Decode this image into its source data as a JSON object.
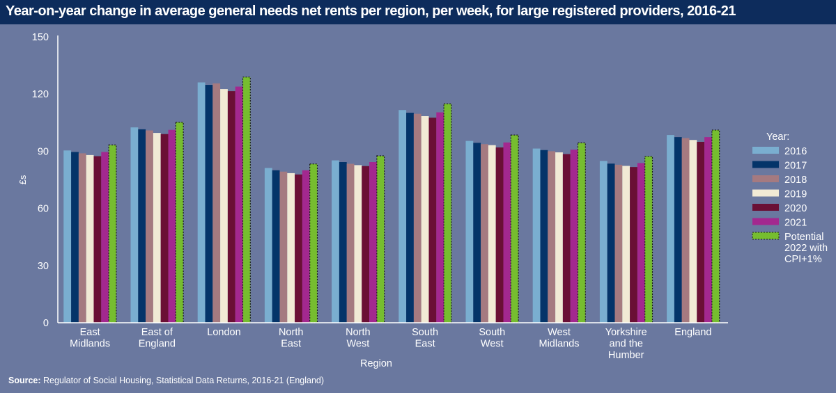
{
  "chart_data": {
    "type": "bar",
    "title": "Year-on-year change in average general needs net rents per region, per week, for large registered providers, 2016-21",
    "xlabel": "Region",
    "ylabel": "£s",
    "ylim": [
      0,
      150
    ],
    "yticks": [
      0,
      30,
      60,
      90,
      120,
      150
    ],
    "grid": false,
    "legend_title": "Year:",
    "legend_position": "right",
    "categories": [
      [
        "East",
        "Midlands"
      ],
      [
        "East  of",
        "England"
      ],
      [
        "London"
      ],
      [
        "North",
        "East"
      ],
      [
        "North",
        "West"
      ],
      [
        "South",
        "East"
      ],
      [
        "South",
        "West"
      ],
      [
        "West",
        "Midlands"
      ],
      [
        "Yorkshire",
        "and the",
        "Humber"
      ],
      [
        "England"
      ]
    ],
    "series": [
      {
        "name": "2016",
        "color": "#7aaed0",
        "values": [
          90.4,
          102.5,
          126.1,
          81.2,
          85.2,
          111.6,
          95.4,
          91.4,
          84.9,
          98.5
        ]
      },
      {
        "name": "2017",
        "color": "#043469",
        "values": [
          89.6,
          101.5,
          124.8,
          80.0,
          84.3,
          110.2,
          94.4,
          90.6,
          83.5,
          97.4
        ]
      },
      {
        "name": "2018",
        "color": "#a57a80",
        "values": [
          88.9,
          100.9,
          125.6,
          79.3,
          83.4,
          109.6,
          93.7,
          90.0,
          82.9,
          96.9
        ]
      },
      {
        "name": "2019",
        "color": "#f1ead5",
        "values": [
          88.0,
          99.6,
          122.6,
          78.5,
          82.7,
          108.4,
          93.2,
          89.4,
          82.3,
          95.9
        ]
      },
      {
        "name": "2020",
        "color": "#6a0f35",
        "values": [
          87.4,
          99.0,
          121.5,
          77.8,
          82.2,
          107.6,
          92.0,
          88.5,
          81.7,
          94.9
        ]
      },
      {
        "name": "2021",
        "color": "#a3288f",
        "values": [
          89.6,
          101.2,
          123.9,
          80.0,
          84.3,
          110.4,
          94.6,
          90.8,
          83.8,
          97.4
        ]
      },
      {
        "name": "Potential 2022 with CPI+1%",
        "name_lines": [
          "Potential",
          "2022 with",
          "CPI+1%"
        ],
        "color": "#76bd2f",
        "dashed_outline": true,
        "values": [
          93.3,
          105.2,
          128.9,
          83.3,
          87.6,
          114.9,
          98.5,
          94.4,
          87.3,
          101.1
        ]
      }
    ]
  },
  "source": {
    "label": "Source:",
    "text": " Regulator of Social Housing, Statistical Data Returns, 2016-21 (England)"
  }
}
